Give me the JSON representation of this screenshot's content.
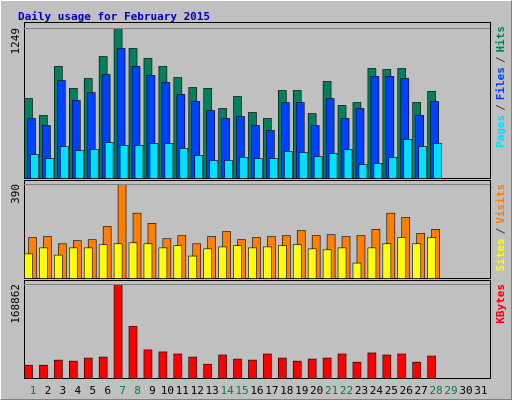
{
  "legend_separator": "/",
  "chart_data": [
    {
      "type": "bar",
      "title": "Daily usage for February 2015",
      "ylim": [
        0,
        1249
      ],
      "yticks": [
        1249
      ],
      "series": [
        {
          "name": "Pages",
          "color": "#00e0ff",
          "values": [
            200,
            166,
            266,
            233,
            241,
            300,
            275,
            275,
            291,
            291,
            250,
            191,
            150,
            150,
            175,
            166,
            166,
            225,
            216,
            183,
            208,
            241,
            116,
            125,
            175,
            325,
            266,
            291,
            null,
            null,
            null
          ]
        },
        {
          "name": "Files",
          "color": "#0040ff",
          "values": [
            500,
            441,
            816,
            650,
            716,
            866,
            1083,
            933,
            858,
            800,
            700,
            641,
            566,
            500,
            516,
            441,
            400,
            633,
            633,
            441,
            666,
            500,
            583,
            850,
            850,
            833,
            525,
            641,
            null,
            null,
            null
          ]
        },
        {
          "name": "Hits",
          "color": "#00805c",
          "values": [
            666,
            525,
            933,
            750,
            833,
            1016,
            1249,
            1083,
            1000,
            933,
            841,
            758,
            750,
            583,
            683,
            550,
            500,
            733,
            733,
            541,
            808,
            608,
            633,
            916,
            908,
            916,
            633,
            725,
            null,
            null,
            null
          ]
        }
      ]
    },
    {
      "type": "bar",
      "ylim": [
        0,
        390
      ],
      "yticks": [
        390
      ],
      "series": [
        {
          "name": "Sites",
          "color": "#ffff00",
          "values": [
            102,
            127,
            97,
            127,
            127,
            140,
            144,
            148,
            144,
            127,
            136,
            93,
            123,
            131,
            136,
            127,
            131,
            136,
            140,
            123,
            119,
            127,
            64,
            127,
            144,
            170,
            144,
            170,
            null,
            null,
            null
          ]
        },
        {
          "name": "Visits",
          "color": "#ff8000",
          "values": [
            170,
            174,
            144,
            157,
            161,
            216,
            390,
            271,
            229,
            165,
            178,
            144,
            174,
            195,
            161,
            170,
            174,
            178,
            199,
            178,
            182,
            174,
            178,
            204,
            271,
            254,
            187,
            204,
            null,
            null,
            null
          ]
        }
      ]
    },
    {
      "type": "bar",
      "ylim": [
        0,
        168862
      ],
      "yticks": [
        168862
      ],
      "categories": [
        "1",
        "2",
        "3",
        "4",
        "5",
        "6",
        "7",
        "8",
        "9",
        "10",
        "11",
        "12",
        "13",
        "14",
        "15",
        "16",
        "17",
        "18",
        "19",
        "20",
        "21",
        "22",
        "23",
        "24",
        "25",
        "26",
        "27",
        "28",
        "29",
        "30",
        "31"
      ],
      "category_colors": [
        "#008040",
        "#000000",
        "#000000",
        "#000000",
        "#000000",
        "#000000",
        "#008040",
        "#008040",
        "#000000",
        "#000000",
        "#000000",
        "#000000",
        "#000000",
        "#008040",
        "#008040",
        "#000000",
        "#000000",
        "#000000",
        "#000000",
        "#000000",
        "#008040",
        "#008040",
        "#000000",
        "#000000",
        "#000000",
        "#000000",
        "#000000",
        "#008040",
        "#008040",
        "#000000",
        "#000000"
      ],
      "series": [
        {
          "name": "KBytes",
          "color": "#ff0000",
          "values": [
            23855,
            23855,
            33030,
            31195,
            36700,
            38535,
            168862,
            93585,
            51380,
            47710,
            44040,
            38535,
            25690,
            42205,
            34865,
            33030,
            44040,
            36700,
            31195,
            34865,
            36700,
            44040,
            29360,
            45875,
            42205,
            44040,
            29360,
            40370,
            null,
            null,
            null
          ]
        }
      ]
    }
  ]
}
